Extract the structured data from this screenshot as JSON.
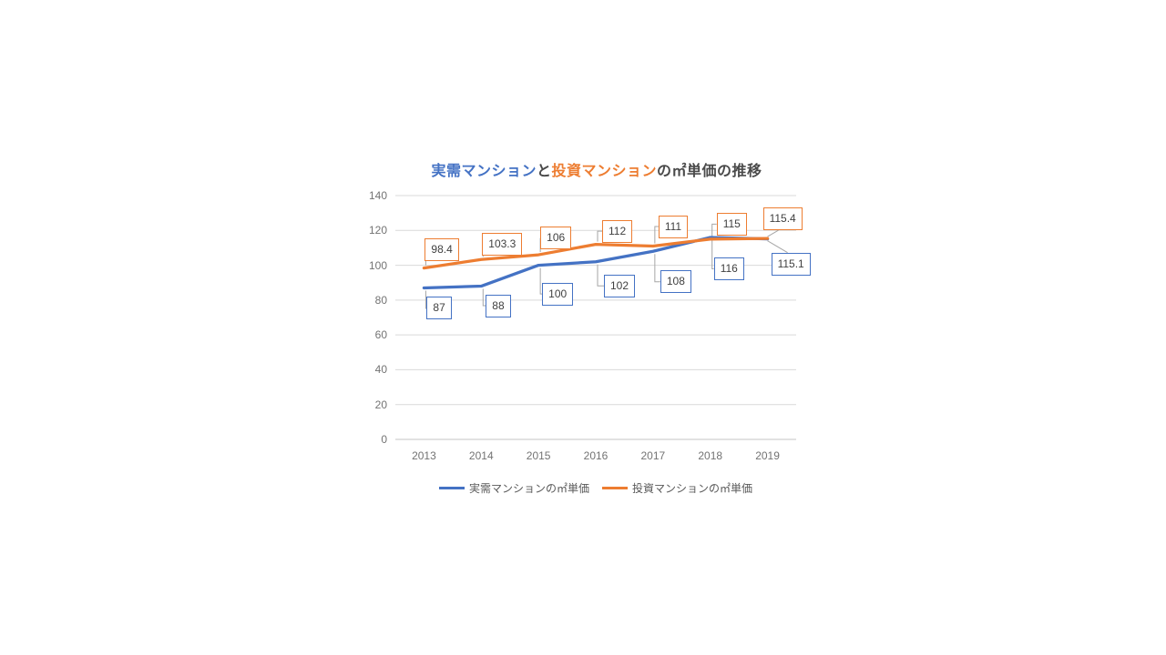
{
  "page": {
    "background": "#ffffff"
  },
  "title": {
    "full": "実需マンションと投資マンションの㎡単価の推移",
    "part1": "実需マンション",
    "part2": "と",
    "part3": "投資マンション",
    "part4": "の㎡単価の推移",
    "part1_color": "#4472C4",
    "part3_color": "#ED7D31",
    "text_color": "#4a4a4a"
  },
  "chart_data": {
    "type": "line",
    "title": "実需マンションと投資マンションの㎡単価の推移",
    "categories": [
      "2013",
      "2014",
      "2015",
      "2016",
      "2017",
      "2018",
      "2019"
    ],
    "series": [
      {
        "name": "実需マンションの㎡単価",
        "color": "#4472C4",
        "values": [
          87,
          88,
          100,
          102,
          108,
          116,
          115.1
        ]
      },
      {
        "name": "投資マンションの㎡単価",
        "color": "#ED7D31",
        "values": [
          98.4,
          103.3,
          106,
          112,
          111,
          115,
          115.4
        ]
      }
    ],
    "xlabel": "",
    "ylabel": "",
    "ylim": [
      0,
      140
    ],
    "y_ticks": [
      0,
      20,
      40,
      60,
      80,
      100,
      120,
      140
    ],
    "grid": true,
    "data_labels": true,
    "legend_position": "bottom",
    "colors": {
      "grid": "#D9D9D9",
      "baseline": "#C6C6C6",
      "leader": "#A6A6A6",
      "axis_text": "#737373",
      "label_text": "#404040"
    }
  },
  "legend": {
    "items": [
      {
        "label": "実需マンションの㎡単価",
        "color": "#4472C4"
      },
      {
        "label": "投資マンションの㎡単価",
        "color": "#ED7D31"
      }
    ]
  }
}
